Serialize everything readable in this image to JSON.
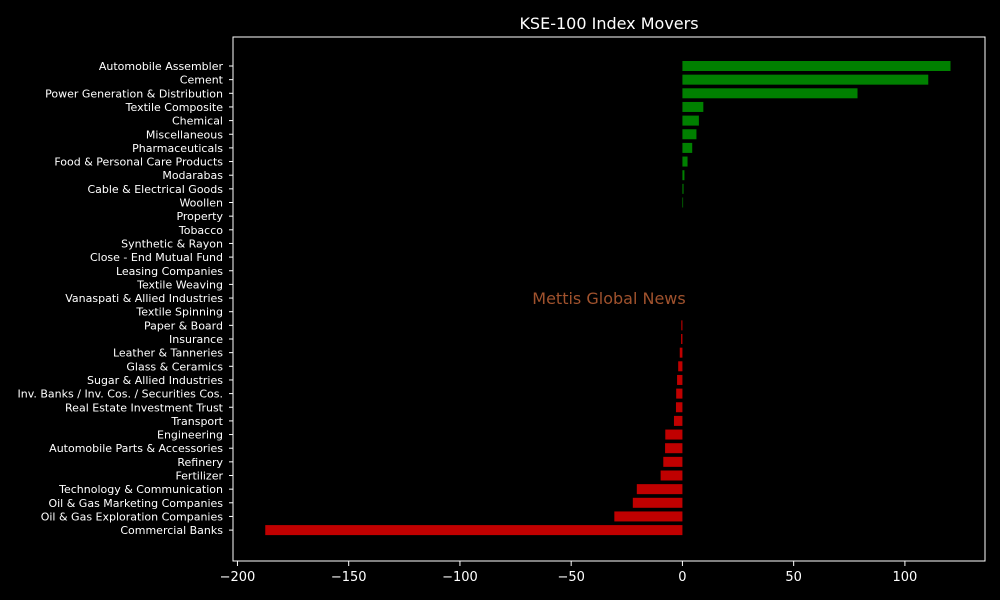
{
  "chart_data": {
    "type": "bar",
    "orientation": "horizontal",
    "title": "KSE-100 Index Movers",
    "xlabel": "",
    "ylabel": "",
    "xlim": [
      -202,
      136
    ],
    "xticks": [
      -200,
      -150,
      -100,
      -50,
      0,
      50,
      100
    ],
    "xtick_labels": [
      "−200",
      "−150",
      "−100",
      "−50",
      "0",
      "50",
      "100"
    ],
    "grid": false,
    "categories": [
      "Automobile Assembler",
      "Cement",
      "Power Generation & Distribution",
      "Textile Composite",
      "Chemical",
      "Miscellaneous",
      "Pharmaceuticals",
      "Food & Personal Care Products",
      "Modarabas",
      "Cable & Electrical Goods",
      "Woollen",
      "Property",
      "Tobacco",
      "Synthetic & Rayon",
      "Close - End Mutual Fund",
      "Leasing Companies",
      "Textile Weaving",
      "Vanaspati & Allied Industries",
      "Textile Spinning",
      "Paper & Board",
      "Insurance",
      "Leather & Tanneries",
      "Glass & Ceramics",
      "Sugar & Allied Industries",
      "Inv. Banks / Inv. Cos. / Securities Cos.",
      "Real Estate Investment Trust",
      "Transport",
      "Engineering",
      "Automobile Parts & Accessories",
      "Refinery",
      "Fertilizer",
      "Technology & Communication",
      "Oil & Gas Marketing Companies",
      "Oil & Gas Exploration Companies",
      "Commercial Banks"
    ],
    "values": [
      120.5,
      110.5,
      78.7,
      9.4,
      7.4,
      6.3,
      4.4,
      2.3,
      0.9,
      0.5,
      0.3,
      0,
      0,
      0,
      0,
      0,
      0,
      0,
      0,
      -0.5,
      -0.6,
      -1.2,
      -1.9,
      -2.4,
      -2.8,
      -2.9,
      -3.8,
      -7.7,
      -7.8,
      -8.6,
      -9.8,
      -20.5,
      -22.3,
      -30.6,
      -187.5
    ],
    "colors": {
      "positive": "#008000",
      "negative": "#c00000"
    }
  },
  "watermark": "Mettis Global News",
  "colors": {
    "background": "#000000",
    "axes": "#ffffff",
    "text": "#ffffff",
    "watermark": "#a0522d"
  }
}
